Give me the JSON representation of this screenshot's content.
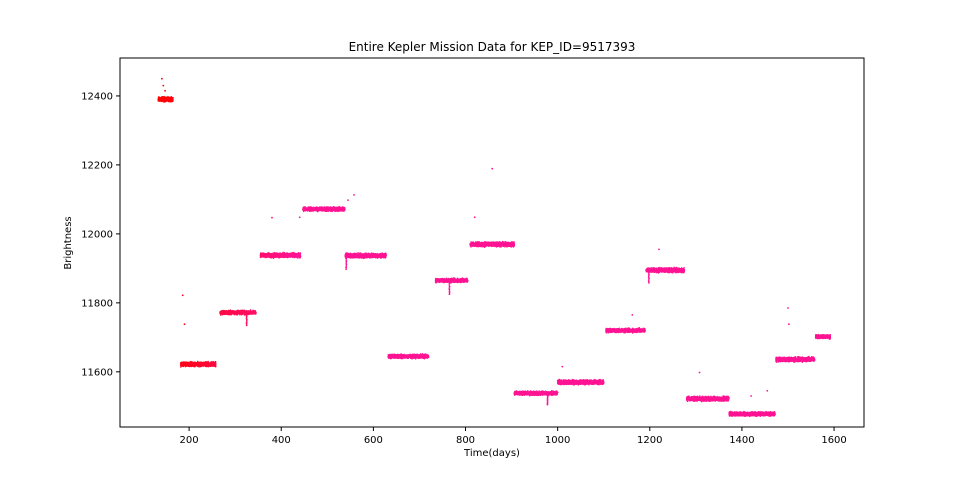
{
  "chart_data": {
    "type": "scatter",
    "title": "Entire Kepler Mission Data for KEP_ID=9517393",
    "xlabel": "Time(days)",
    "ylabel": "Brightness",
    "xlim": [
      50,
      1665
    ],
    "ylim": [
      11440,
      12510
    ],
    "xticks": [
      200,
      400,
      600,
      800,
      1000,
      1200,
      1400,
      1600
    ],
    "yticks": [
      11600,
      11800,
      12000,
      12200,
      12400
    ],
    "grid": false,
    "legend": "none",
    "color_start": "#ff0000",
    "color_end": "#ff1493",
    "segments": [
      {
        "x_start": 133,
        "x_end": 165,
        "y": 12390,
        "spread": 9
      },
      {
        "x_start": 182,
        "x_end": 258,
        "y": 11622,
        "spread": 9
      },
      {
        "x_start": 267,
        "x_end": 345,
        "y": 11772,
        "spread": 8
      },
      {
        "x_start": 355,
        "x_end": 442,
        "y": 11938,
        "spread": 9
      },
      {
        "x_start": 447,
        "x_end": 538,
        "y": 12072,
        "spread": 8
      },
      {
        "x_start": 539,
        "x_end": 628,
        "y": 11937,
        "spread": 9
      },
      {
        "x_start": 632,
        "x_end": 720,
        "y": 11645,
        "spread": 8
      },
      {
        "x_start": 735,
        "x_end": 805,
        "y": 11865,
        "spread": 8
      },
      {
        "x_start": 810,
        "x_end": 906,
        "y": 11970,
        "spread": 9
      },
      {
        "x_start": 906,
        "x_end": 1000,
        "y": 11538,
        "spread": 8
      },
      {
        "x_start": 1000,
        "x_end": 1100,
        "y": 11570,
        "spread": 9
      },
      {
        "x_start": 1105,
        "x_end": 1190,
        "y": 11720,
        "spread": 8
      },
      {
        "x_start": 1192,
        "x_end": 1275,
        "y": 11895,
        "spread": 9
      },
      {
        "x_start": 1280,
        "x_end": 1372,
        "y": 11522,
        "spread": 9
      },
      {
        "x_start": 1372,
        "x_end": 1472,
        "y": 11478,
        "spread": 8
      },
      {
        "x_start": 1474,
        "x_end": 1558,
        "y": 11636,
        "spread": 9
      },
      {
        "x_start": 1560,
        "x_end": 1592,
        "y": 11702,
        "spread": 8
      }
    ],
    "dips": [
      {
        "x": 325,
        "y": 11735
      },
      {
        "x": 541,
        "y": 11898
      },
      {
        "x": 765,
        "y": 11825
      },
      {
        "x": 978,
        "y": 11505
      },
      {
        "x": 1198,
        "y": 11858
      }
    ],
    "outliers": [
      {
        "x": 141,
        "y": 12450
      },
      {
        "x": 144,
        "y": 12430
      },
      {
        "x": 148,
        "y": 12415
      },
      {
        "x": 186,
        "y": 11822
      },
      {
        "x": 190,
        "y": 11738
      },
      {
        "x": 380,
        "y": 12047
      },
      {
        "x": 440,
        "y": 12048
      },
      {
        "x": 558,
        "y": 12113
      },
      {
        "x": 545,
        "y": 12098
      },
      {
        "x": 820,
        "y": 12048
      },
      {
        "x": 858,
        "y": 12189
      },
      {
        "x": 1220,
        "y": 11955
      },
      {
        "x": 1308,
        "y": 11598
      },
      {
        "x": 1455,
        "y": 11545
      },
      {
        "x": 1500,
        "y": 11785
      },
      {
        "x": 1502,
        "y": 11738
      },
      {
        "x": 1010,
        "y": 11615
      },
      {
        "x": 1162,
        "y": 11765
      },
      {
        "x": 1420,
        "y": 11530
      }
    ]
  }
}
